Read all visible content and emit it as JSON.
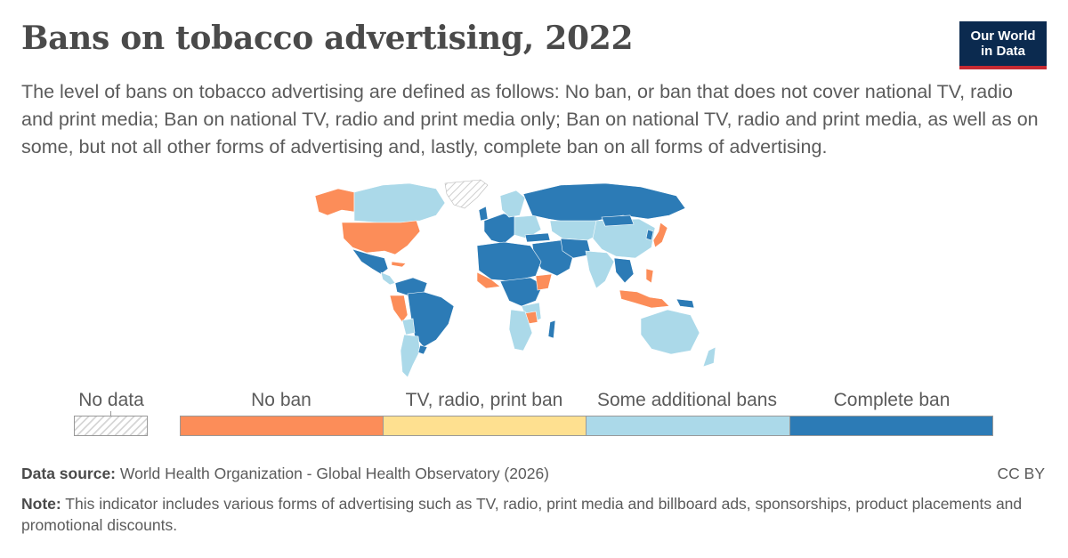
{
  "header": {
    "title": "Bans on tobacco advertising, 2022",
    "subtitle": "The level of bans on tobacco advertising are defined as follows: No ban, or ban that does not cover national TV, radio and print media; Ban on national TV, radio and print media only; Ban on national TV, radio and print media, as well as on some, but not all other forms of advertising and, lastly, complete ban on all forms of advertising."
  },
  "logo": {
    "line1": "Our World",
    "line2": "in Data"
  },
  "legend": {
    "no_data": "No data",
    "categories": [
      {
        "label": "No ban",
        "color": "#fc8d59"
      },
      {
        "label": "TV, radio, print ban",
        "color": "#fee090"
      },
      {
        "label": "Some additional bans",
        "color": "#abd9e9"
      },
      {
        "label": "Complete ban",
        "color": "#2c7bb6"
      }
    ]
  },
  "footer": {
    "source_label": "Data source:",
    "source_text": "World Health Organization - Global Health Observatory (2026)",
    "license": "CC BY",
    "note_label": "Note:",
    "note_text": "This indicator includes various forms of advertising such as TV, radio, print media and billboard ads, sponsorships, product placements and promotional discounts."
  }
}
